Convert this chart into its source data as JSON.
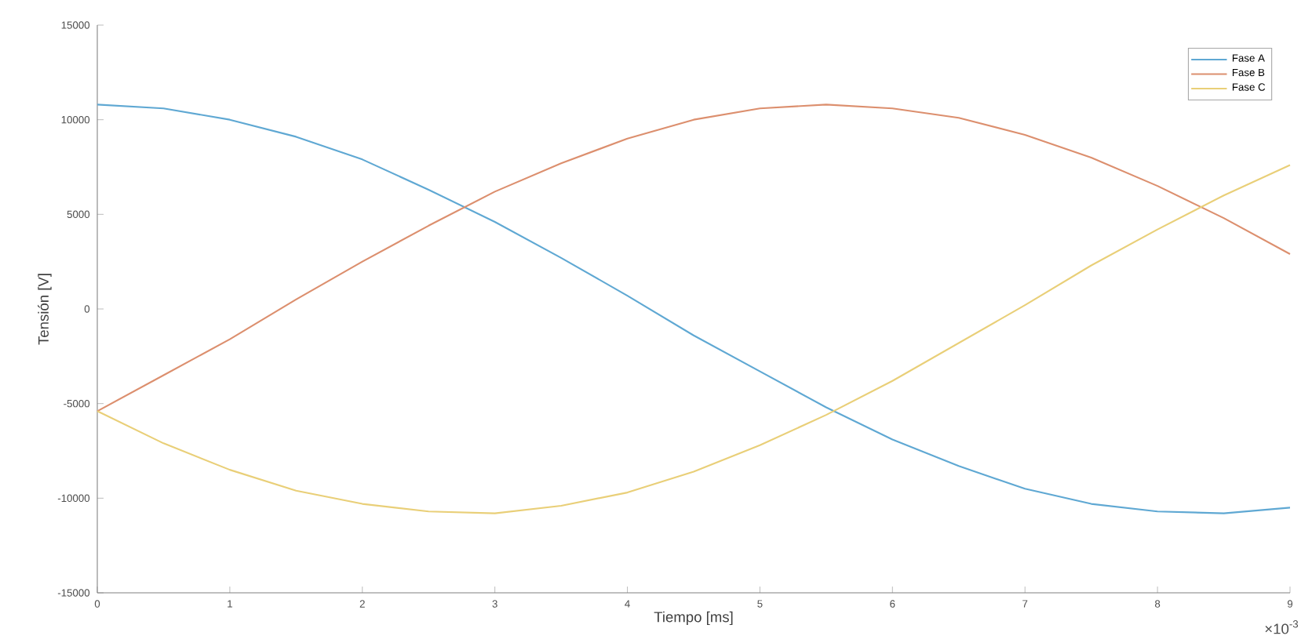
{
  "chart_data": {
    "type": "line",
    "xlabel": "Tiempo [ms]",
    "ylabel": "Tensión [V]",
    "x": [
      0,
      0.5,
      1,
      1.5,
      2,
      2.5,
      3,
      3.5,
      4,
      4.5,
      5,
      5.5,
      6,
      6.5,
      7,
      7.5,
      8,
      8.5,
      9
    ],
    "series": [
      {
        "name": "Fase A",
        "color": "#5fa8d3",
        "values": [
          10800,
          10600,
          10000,
          9100,
          7900,
          6300,
          4600,
          2700,
          700,
          -1400,
          -3300,
          -5200,
          -6900,
          -8300,
          -9500,
          -10300,
          -10700,
          -10800,
          -10500
        ]
      },
      {
        "name": "Fase B",
        "color": "#dc8f6e",
        "values": [
          -5400,
          -3500,
          -1600,
          500,
          2500,
          4400,
          6200,
          7700,
          9000,
          10000,
          10600,
          10800,
          10600,
          10100,
          9200,
          8000,
          6500,
          4800,
          2900
        ]
      },
      {
        "name": "Fase C",
        "color": "#e9cf78",
        "values": [
          -5400,
          -7100,
          -8500,
          -9600,
          -10300,
          -10700,
          -10800,
          -10400,
          -9700,
          -8600,
          -7200,
          -5600,
          -3800,
          -1800,
          200,
          2300,
          4200,
          6000,
          7600
        ]
      }
    ],
    "xlim": [
      0,
      9
    ],
    "xticks": [
      0,
      1,
      2,
      3,
      4,
      5,
      6,
      7,
      8,
      9
    ],
    "ylim": [
      -15000,
      15000
    ],
    "yticks": [
      -15000,
      -10000,
      -5000,
      0,
      5000,
      10000,
      15000
    ],
    "legend": "top right",
    "grid": false,
    "annotations": [
      "×10$^{-3}$"
    ]
  }
}
